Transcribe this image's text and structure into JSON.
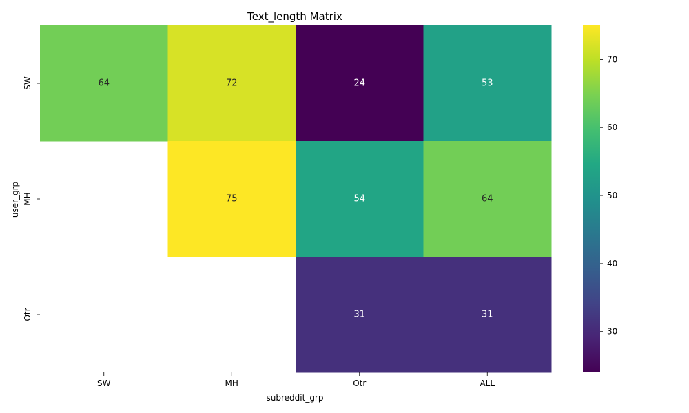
{
  "chart_data": {
    "type": "heatmap",
    "title": "Text_length Matrix",
    "xlabel": "subreddit_grp",
    "ylabel": "user_grp",
    "x_categories": [
      "SW",
      "MH",
      "Otr",
      "ALL"
    ],
    "y_categories": [
      "SW",
      "MH",
      "Otr"
    ],
    "values": [
      [
        64,
        72,
        24,
        53
      ],
      [
        null,
        75,
        54,
        64
      ],
      [
        null,
        null,
        31,
        31
      ]
    ],
    "value_labels": [
      [
        "64",
        "72",
        "24",
        "53"
      ],
      [
        null,
        "75",
        "54",
        "64"
      ],
      [
        null,
        null,
        "31",
        "31"
      ]
    ],
    "colormap": "viridis",
    "colorbar": {
      "vmin": 24,
      "vmax": 75,
      "ticks": [
        30,
        40,
        50,
        60,
        70
      ],
      "tick_labels": [
        "30",
        "40",
        "50",
        "60",
        "70"
      ]
    }
  }
}
